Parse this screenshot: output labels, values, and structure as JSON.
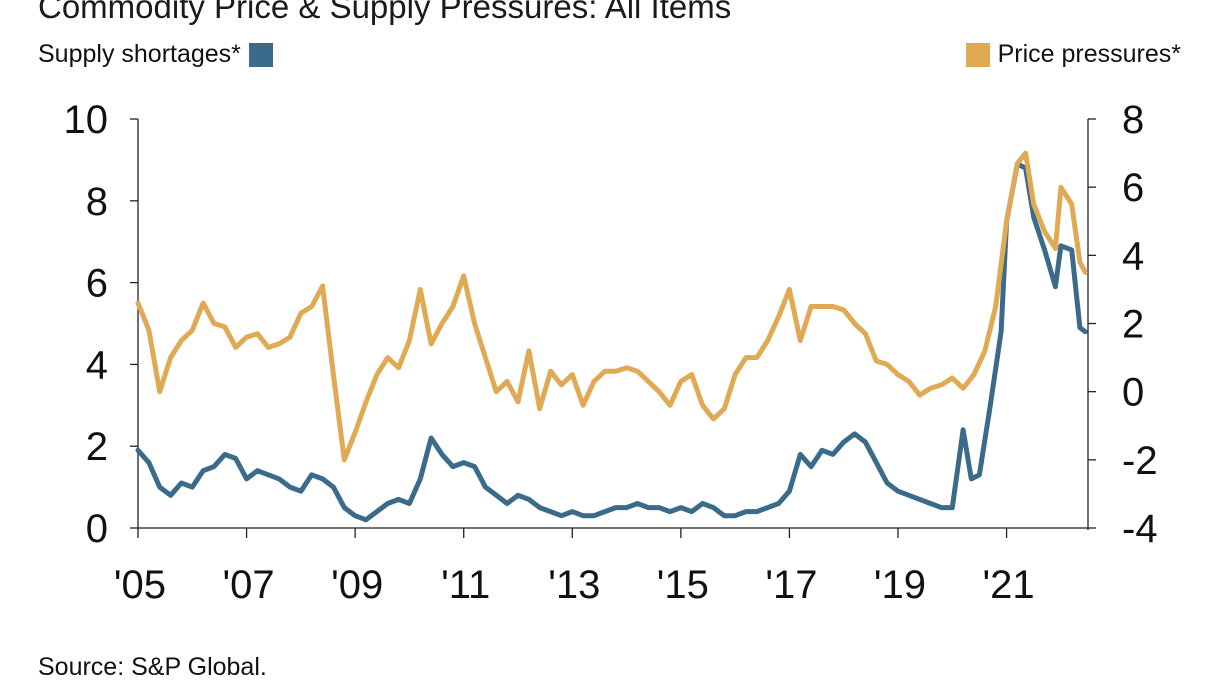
{
  "title": "Commodity Price & Supply Pressures: All Items",
  "source": "Source: S&P Global.",
  "chart_data": {
    "type": "line",
    "title": "Commodity Price & Supply Pressures: All Items",
    "x_range": [
      2005.0,
      2022.5
    ],
    "x_ticks": [
      "'05",
      "'07",
      "'09",
      "'11",
      "'13",
      "'15",
      "'17",
      "'19",
      "'21"
    ],
    "x_tick_values": [
      2005,
      2007,
      2009,
      2011,
      2013,
      2015,
      2017,
      2019,
      2021
    ],
    "y_left": {
      "range": [
        0,
        10
      ],
      "ticks": [
        "0",
        "2",
        "4",
        "6",
        "8",
        "10"
      ]
    },
    "y_right": {
      "range": [
        -4,
        8
      ],
      "ticks": [
        "-4",
        "-2",
        "0",
        "2",
        "4",
        "6",
        "8"
      ]
    },
    "grid": false,
    "colors": {
      "supply": "#3a6b8a",
      "price": "#e0aa55"
    },
    "series": [
      {
        "name": "Supply shortages*",
        "axis": "left",
        "x": [
          2005.0,
          2005.2,
          2005.4,
          2005.6,
          2005.8,
          2006.0,
          2006.2,
          2006.4,
          2006.6,
          2006.8,
          2007.0,
          2007.2,
          2007.4,
          2007.6,
          2007.8,
          2008.0,
          2008.2,
          2008.4,
          2008.6,
          2008.8,
          2009.0,
          2009.2,
          2009.4,
          2009.6,
          2009.8,
          2010.0,
          2010.2,
          2010.4,
          2010.6,
          2010.8,
          2011.0,
          2011.2,
          2011.4,
          2011.6,
          2011.8,
          2012.0,
          2012.2,
          2012.4,
          2012.6,
          2012.8,
          2013.0,
          2013.2,
          2013.4,
          2013.6,
          2013.8,
          2014.0,
          2014.2,
          2014.4,
          2014.6,
          2014.8,
          2015.0,
          2015.2,
          2015.4,
          2015.6,
          2015.8,
          2016.0,
          2016.2,
          2016.4,
          2016.6,
          2016.8,
          2017.0,
          2017.2,
          2017.4,
          2017.6,
          2017.8,
          2018.0,
          2018.2,
          2018.4,
          2018.6,
          2018.8,
          2019.0,
          2019.2,
          2019.4,
          2019.6,
          2019.8,
          2020.0,
          2020.2,
          2020.35,
          2020.5,
          2020.7,
          2020.9,
          2021.0,
          2021.2,
          2021.35,
          2021.5,
          2021.7,
          2021.9,
          2022.0,
          2022.2,
          2022.35,
          2022.45
        ],
        "values": [
          1.9,
          1.6,
          1.0,
          0.8,
          1.1,
          1.0,
          1.4,
          1.5,
          1.8,
          1.7,
          1.2,
          1.4,
          1.3,
          1.2,
          1.0,
          0.9,
          1.3,
          1.2,
          1.0,
          0.5,
          0.3,
          0.2,
          0.4,
          0.6,
          0.7,
          0.6,
          1.2,
          2.2,
          1.8,
          1.5,
          1.6,
          1.5,
          1.0,
          0.8,
          0.6,
          0.8,
          0.7,
          0.5,
          0.4,
          0.3,
          0.4,
          0.3,
          0.3,
          0.4,
          0.5,
          0.5,
          0.6,
          0.5,
          0.5,
          0.4,
          0.5,
          0.4,
          0.6,
          0.5,
          0.3,
          0.3,
          0.4,
          0.4,
          0.5,
          0.6,
          0.9,
          1.8,
          1.5,
          1.9,
          1.8,
          2.1,
          2.3,
          2.1,
          1.6,
          1.1,
          0.9,
          0.8,
          0.7,
          0.6,
          0.5,
          0.5,
          2.4,
          1.2,
          1.3,
          3.0,
          4.8,
          7.5,
          8.9,
          8.8,
          7.6,
          6.8,
          5.9,
          6.9,
          6.8,
          4.9,
          4.8
        ]
      },
      {
        "name": "Price pressures*",
        "axis": "right",
        "x": [
          2005.0,
          2005.2,
          2005.4,
          2005.6,
          2005.8,
          2006.0,
          2006.2,
          2006.4,
          2006.6,
          2006.8,
          2007.0,
          2007.2,
          2007.4,
          2007.6,
          2007.8,
          2008.0,
          2008.2,
          2008.4,
          2008.6,
          2008.8,
          2009.0,
          2009.2,
          2009.4,
          2009.6,
          2009.8,
          2010.0,
          2010.2,
          2010.4,
          2010.6,
          2010.8,
          2011.0,
          2011.2,
          2011.4,
          2011.6,
          2011.8,
          2012.0,
          2012.2,
          2012.4,
          2012.6,
          2012.8,
          2013.0,
          2013.2,
          2013.4,
          2013.6,
          2013.8,
          2014.0,
          2014.2,
          2014.4,
          2014.6,
          2014.8,
          2015.0,
          2015.2,
          2015.4,
          2015.6,
          2015.8,
          2016.0,
          2016.2,
          2016.4,
          2016.6,
          2016.8,
          2017.0,
          2017.2,
          2017.4,
          2017.6,
          2017.8,
          2018.0,
          2018.2,
          2018.4,
          2018.6,
          2018.8,
          2019.0,
          2019.2,
          2019.4,
          2019.6,
          2019.8,
          2020.0,
          2020.2,
          2020.4,
          2020.6,
          2020.8,
          2021.0,
          2021.2,
          2021.35,
          2021.5,
          2021.7,
          2021.9,
          2022.0,
          2022.2,
          2022.35,
          2022.45
        ],
        "values": [
          2.6,
          1.8,
          0.0,
          1.0,
          1.5,
          1.8,
          2.6,
          2.0,
          1.9,
          1.3,
          1.6,
          1.7,
          1.3,
          1.4,
          1.6,
          2.3,
          2.5,
          3.1,
          0.5,
          -2.0,
          -1.2,
          -0.3,
          0.5,
          1.0,
          0.7,
          1.5,
          3.0,
          1.4,
          2.0,
          2.5,
          3.4,
          2.0,
          1.0,
          0.0,
          0.3,
          -0.3,
          1.2,
          -0.5,
          0.6,
          0.2,
          0.5,
          -0.4,
          0.3,
          0.6,
          0.6,
          0.7,
          0.6,
          0.3,
          0.0,
          -0.4,
          0.3,
          0.5,
          -0.4,
          -0.8,
          -0.5,
          0.5,
          1.0,
          1.0,
          1.5,
          2.2,
          3.0,
          1.5,
          2.5,
          2.5,
          2.5,
          2.4,
          2.0,
          1.7,
          0.9,
          0.8,
          0.5,
          0.3,
          -0.1,
          0.1,
          0.2,
          0.4,
          0.1,
          0.5,
          1.2,
          2.5,
          5.0,
          6.7,
          7.0,
          5.5,
          4.7,
          4.2,
          6.0,
          5.5,
          3.8,
          3.5
        ]
      }
    ]
  }
}
